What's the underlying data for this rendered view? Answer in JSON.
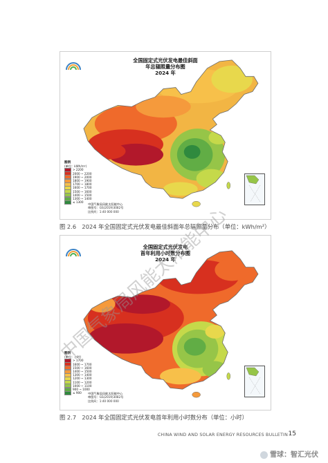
{
  "maps": [
    {
      "title_lines": [
        "全国固定式光伏发电最佳斜面",
        "年总辐照量分布图",
        "2024 年"
      ],
      "legend_title": "图例",
      "legend_unit": "(单位：kWh/m²)",
      "legend": [
        {
          "label": "> 2200",
          "color": "#b2182b"
        },
        {
          "label": "2000 ~ 2200",
          "color": "#d7301f"
        },
        {
          "label": "1900 ~ 2000",
          "color": "#ef6a2b"
        },
        {
          "label": "1800 ~ 1900",
          "color": "#f59a3c"
        },
        {
          "label": "1700 ~ 1800",
          "color": "#f7c04a"
        },
        {
          "label": "1600 ~ 1700",
          "color": "#e8d84c"
        },
        {
          "label": "1500 ~ 1600",
          "color": "#c5d94a"
        },
        {
          "label": "1400 ~ 1500",
          "color": "#96c548"
        },
        {
          "label": "1300 ~ 1400",
          "color": "#61ad45"
        },
        {
          "label": "≤ 1300",
          "color": "#2f8a3e"
        }
      ],
      "source_lines": [
        "中国气象局风能太阳能中心",
        "审图号：GS(2019)3082号",
        "比例尺：1:40 000 000"
      ],
      "caption": "图 2.6　2024 年全国固定式光伏发电最佳斜面年总辐照量分布（单位：kWh/m²）"
    },
    {
      "title_lines": [
        "全国固定式光伏发电",
        "首年利用小时数分布图",
        "2024 年"
      ],
      "legend_title": "图例",
      "legend_unit": "(单位：小时)",
      "legend": [
        {
          "label": "> 1700",
          "color": "#b2182b"
        },
        {
          "label": "1600 ~ 1700",
          "color": "#d7301f"
        },
        {
          "label": "1500 ~ 1600",
          "color": "#ef6a2b"
        },
        {
          "label": "1400 ~ 1500",
          "color": "#f59a3c"
        },
        {
          "label": "1300 ~ 1400",
          "color": "#f7c04a"
        },
        {
          "label": "1200 ~ 1300",
          "color": "#e8d84c"
        },
        {
          "label": "1100 ~ 1200",
          "color": "#c5d94a"
        },
        {
          "label": "1000 ~ 1100",
          "color": "#96c548"
        },
        {
          "label": "900 ~ 1000",
          "color": "#61ad45"
        },
        {
          "label": "≤ 900",
          "color": "#2f8a3e"
        }
      ],
      "source_lines": [
        "中国气象局风能太阳能中心",
        "审图号：GS(2019)3082号",
        "比例尺：1:40 000 000"
      ],
      "caption": "图 2.7　2024 年全国固定式光伏发电首年利用小时数分布（单位：小时）"
    }
  ],
  "watermark": "中国气象局风能太阳能中心",
  "footer": {
    "bulletin": "CHINA WIND AND SOLAR ENERGY RESOURCES BULLETIN",
    "page_number": "15"
  },
  "brand": "雪球：智汇光伏"
}
